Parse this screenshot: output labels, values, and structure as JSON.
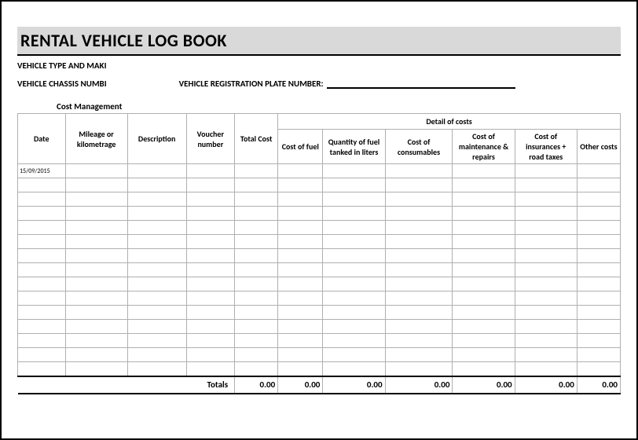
{
  "title": "RENTAL VEHICLE LOG BOOK",
  "info": {
    "vehicle_type_label": "VEHICLE TYPE AND MAKI",
    "chassis_label": "VEHICLE CHASSIS NUMBI",
    "reg_plate_label": "VEHICLE REGISTRATION PLATE NUMBER:"
  },
  "section_label": "Cost Management",
  "table": {
    "columns": {
      "date": "Date",
      "mileage": "Mileage or kilometrage",
      "description": "Description",
      "voucher": "Voucher number",
      "total_cost": "Total Cost",
      "detail_header": "Detail of costs",
      "cost_fuel": "Cost of fuel",
      "qty_fuel": "Quantity of fuel tanked in liters",
      "cost_consumables": "Cost of consumables",
      "cost_maint": "Cost of maintenance & repairs",
      "cost_ins": "Cost of insurances + road taxes",
      "other": "Other costs"
    },
    "col_widths": {
      "date": 55,
      "mileage": 72,
      "description": 68,
      "voucher": 56,
      "total_cost": 50,
      "cost_fuel": 52,
      "qty_fuel": 72,
      "cost_consumables": 78,
      "cost_maint": 72,
      "cost_ins": 72,
      "other": 50
    },
    "first_date": "15/09/2015",
    "blank_rows": 15,
    "totals": {
      "label": "Totals",
      "total_cost": "0.00",
      "cost_fuel": "0.00",
      "qty_fuel": "0.00",
      "cost_consumables": "0.00",
      "cost_maint": "0.00",
      "cost_ins": "0.00",
      "other": "0.00"
    }
  },
  "colors": {
    "title_bg": "#d9d9d9",
    "border": "#b0b0b0",
    "strong_border": "#000000",
    "background": "#ffffff"
  }
}
